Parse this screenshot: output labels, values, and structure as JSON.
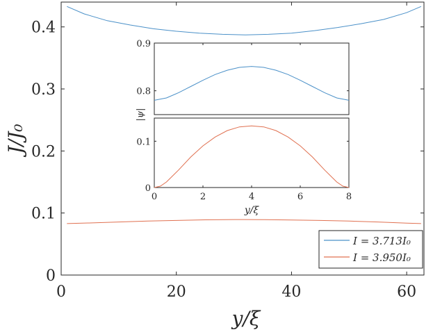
{
  "chart_data": [
    {
      "type": "line",
      "xlabel": "y/ξ",
      "ylabel": "J/J₀",
      "xlim": [
        0,
        63
      ],
      "ylim": [
        0,
        0.44
      ],
      "xticks": [
        0,
        20,
        40,
        60
      ],
      "yticks": [
        0,
        0.1,
        0.2,
        0.3,
        0.4
      ],
      "xtick_labels": [
        "0",
        "20",
        "40",
        "60"
      ],
      "ytick_labels": [
        "0",
        "0.1",
        "0.2",
        "0.3",
        "0.4"
      ],
      "grid": false,
      "legend_position": "bottom-right",
      "series": [
        {
          "name": "I = 3.713I₀",
          "color": "#4a90c8",
          "x": [
            1,
            4,
            8,
            12,
            16,
            20,
            24,
            28,
            32,
            36,
            40,
            44,
            48,
            52,
            56,
            60,
            62.5
          ],
          "y": [
            0.433,
            0.421,
            0.41,
            0.403,
            0.397,
            0.393,
            0.39,
            0.388,
            0.387,
            0.388,
            0.39,
            0.394,
            0.399,
            0.405,
            0.412,
            0.423,
            0.433
          ]
        },
        {
          "name": "I = 3.950I₀",
          "color": "#e07050",
          "x": [
            1,
            5,
            10,
            15,
            20,
            25,
            30,
            32,
            35,
            40,
            45,
            50,
            55,
            60,
            62.5
          ],
          "y": [
            0.083,
            0.084,
            0.0855,
            0.087,
            0.088,
            0.089,
            0.0895,
            0.0895,
            0.0893,
            0.0888,
            0.088,
            0.087,
            0.0855,
            0.0838,
            0.083
          ]
        }
      ]
    },
    {
      "type": "line",
      "xlabel": "y/ξ",
      "ylabel": "|ψ|",
      "xlim": [
        0,
        8
      ],
      "broken_y_axis": true,
      "upper_panel_ylim": [
        0.75,
        0.9
      ],
      "lower_panel_ylim": [
        0,
        0.15
      ],
      "xticks": [
        0,
        2,
        4,
        6,
        8
      ],
      "xtick_labels": [
        "0",
        "2",
        "4",
        "6",
        "8"
      ],
      "upper_yticks": [
        0.8,
        0.9
      ],
      "upper_ytick_labels": [
        "0.8",
        "0.9"
      ],
      "lower_yticks": [
        0,
        0.1
      ],
      "lower_ytick_labels": [
        "0",
        "0.1"
      ],
      "series": [
        {
          "color": "#4a90c8",
          "panel": "upper",
          "x": [
            0,
            0.5,
            1,
            1.5,
            2,
            2.5,
            3,
            3.5,
            4,
            4.5,
            5,
            5.5,
            6,
            6.5,
            7,
            7.5,
            8
          ],
          "y": [
            0.78,
            0.785,
            0.796,
            0.809,
            0.822,
            0.834,
            0.843,
            0.849,
            0.851,
            0.849,
            0.843,
            0.834,
            0.822,
            0.809,
            0.796,
            0.785,
            0.78
          ]
        },
        {
          "color": "#e07050",
          "panel": "lower",
          "x": [
            0,
            0.25,
            0.5,
            1,
            1.5,
            2,
            2.5,
            3,
            3.5,
            4,
            4.5,
            5,
            5.5,
            6,
            6.5,
            7,
            7.5,
            7.75,
            8
          ],
          "y": [
            0.0,
            0.003,
            0.012,
            0.038,
            0.066,
            0.09,
            0.109,
            0.123,
            0.131,
            0.133,
            0.131,
            0.123,
            0.109,
            0.09,
            0.066,
            0.038,
            0.012,
            0.003,
            0.0
          ]
        }
      ]
    }
  ]
}
